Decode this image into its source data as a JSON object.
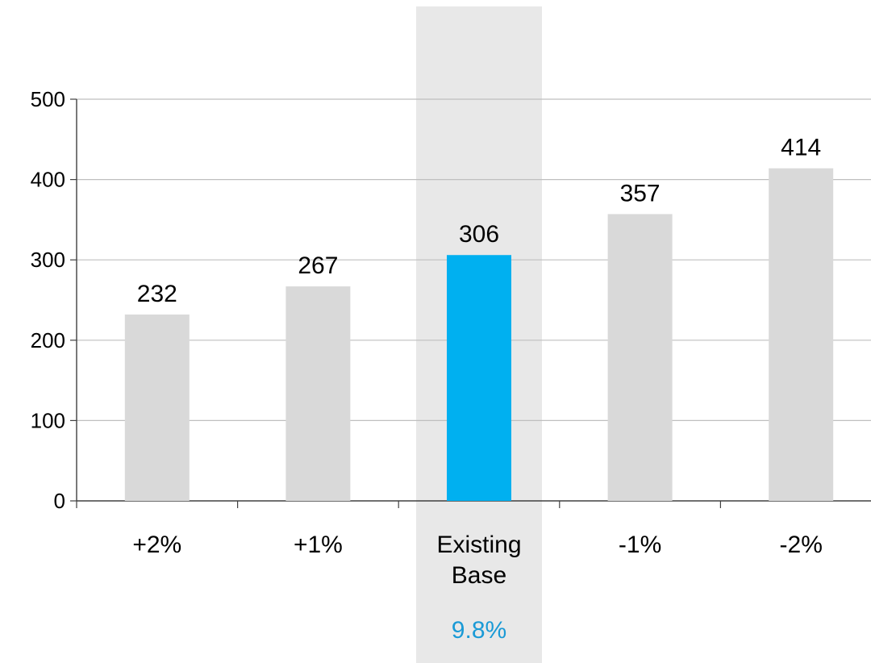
{
  "chart_data": {
    "type": "bar",
    "title": "",
    "xlabel": "",
    "ylabel": "",
    "ylim": [
      0,
      500
    ],
    "yticks": [
      0,
      100,
      200,
      300,
      400,
      500
    ],
    "grid": true,
    "legend": "none",
    "categories": [
      [
        "+2%"
      ],
      [
        "+1%"
      ],
      [
        "Existing",
        "Base"
      ],
      [
        "-1%"
      ],
      [
        "-2%"
      ]
    ],
    "values": [
      232,
      267,
      306,
      357,
      414
    ],
    "highlight_index": 2,
    "highlight_note": "9.8%",
    "colors": {
      "bar": "#d9d9d9",
      "highlight_bar": "#00b0f0",
      "highlight_band": "#e8e8e8",
      "highlight_note": "#1a9ad6",
      "grid": "#bfbfbf",
      "axis": "#404040"
    }
  }
}
